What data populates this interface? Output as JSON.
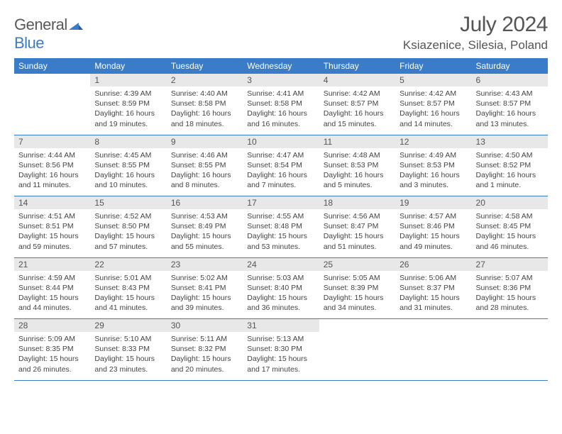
{
  "brand": {
    "part1": "General",
    "part2": "Blue"
  },
  "title": "July 2024",
  "location": "Ksiazenice, Silesia, Poland",
  "colors": {
    "header_bg": "#3a7cc7",
    "header_text": "#ffffff",
    "daynum_bg": "#e8e8e8",
    "text": "#444444",
    "rule": "#3a7cc7",
    "page_bg": "#ffffff",
    "title_color": "#555555"
  },
  "dayNames": [
    "Sunday",
    "Monday",
    "Tuesday",
    "Wednesday",
    "Thursday",
    "Friday",
    "Saturday"
  ],
  "weeks": [
    [
      null,
      {
        "d": "1",
        "sr": "4:39 AM",
        "ss": "8:59 PM",
        "dl": "16 hours and 19 minutes."
      },
      {
        "d": "2",
        "sr": "4:40 AM",
        "ss": "8:58 PM",
        "dl": "16 hours and 18 minutes."
      },
      {
        "d": "3",
        "sr": "4:41 AM",
        "ss": "8:58 PM",
        "dl": "16 hours and 16 minutes."
      },
      {
        "d": "4",
        "sr": "4:42 AM",
        "ss": "8:57 PM",
        "dl": "16 hours and 15 minutes."
      },
      {
        "d": "5",
        "sr": "4:42 AM",
        "ss": "8:57 PM",
        "dl": "16 hours and 14 minutes."
      },
      {
        "d": "6",
        "sr": "4:43 AM",
        "ss": "8:57 PM",
        "dl": "16 hours and 13 minutes."
      }
    ],
    [
      {
        "d": "7",
        "sr": "4:44 AM",
        "ss": "8:56 PM",
        "dl": "16 hours and 11 minutes."
      },
      {
        "d": "8",
        "sr": "4:45 AM",
        "ss": "8:55 PM",
        "dl": "16 hours and 10 minutes."
      },
      {
        "d": "9",
        "sr": "4:46 AM",
        "ss": "8:55 PM",
        "dl": "16 hours and 8 minutes."
      },
      {
        "d": "10",
        "sr": "4:47 AM",
        "ss": "8:54 PM",
        "dl": "16 hours and 7 minutes."
      },
      {
        "d": "11",
        "sr": "4:48 AM",
        "ss": "8:53 PM",
        "dl": "16 hours and 5 minutes."
      },
      {
        "d": "12",
        "sr": "4:49 AM",
        "ss": "8:53 PM",
        "dl": "16 hours and 3 minutes."
      },
      {
        "d": "13",
        "sr": "4:50 AM",
        "ss": "8:52 PM",
        "dl": "16 hours and 1 minute."
      }
    ],
    [
      {
        "d": "14",
        "sr": "4:51 AM",
        "ss": "8:51 PM",
        "dl": "15 hours and 59 minutes."
      },
      {
        "d": "15",
        "sr": "4:52 AM",
        "ss": "8:50 PM",
        "dl": "15 hours and 57 minutes."
      },
      {
        "d": "16",
        "sr": "4:53 AM",
        "ss": "8:49 PM",
        "dl": "15 hours and 55 minutes."
      },
      {
        "d": "17",
        "sr": "4:55 AM",
        "ss": "8:48 PM",
        "dl": "15 hours and 53 minutes."
      },
      {
        "d": "18",
        "sr": "4:56 AM",
        "ss": "8:47 PM",
        "dl": "15 hours and 51 minutes."
      },
      {
        "d": "19",
        "sr": "4:57 AM",
        "ss": "8:46 PM",
        "dl": "15 hours and 49 minutes."
      },
      {
        "d": "20",
        "sr": "4:58 AM",
        "ss": "8:45 PM",
        "dl": "15 hours and 46 minutes."
      }
    ],
    [
      {
        "d": "21",
        "sr": "4:59 AM",
        "ss": "8:44 PM",
        "dl": "15 hours and 44 minutes."
      },
      {
        "d": "22",
        "sr": "5:01 AM",
        "ss": "8:43 PM",
        "dl": "15 hours and 41 minutes."
      },
      {
        "d": "23",
        "sr": "5:02 AM",
        "ss": "8:41 PM",
        "dl": "15 hours and 39 minutes."
      },
      {
        "d": "24",
        "sr": "5:03 AM",
        "ss": "8:40 PM",
        "dl": "15 hours and 36 minutes."
      },
      {
        "d": "25",
        "sr": "5:05 AM",
        "ss": "8:39 PM",
        "dl": "15 hours and 34 minutes."
      },
      {
        "d": "26",
        "sr": "5:06 AM",
        "ss": "8:37 PM",
        "dl": "15 hours and 31 minutes."
      },
      {
        "d": "27",
        "sr": "5:07 AM",
        "ss": "8:36 PM",
        "dl": "15 hours and 28 minutes."
      }
    ],
    [
      {
        "d": "28",
        "sr": "5:09 AM",
        "ss": "8:35 PM",
        "dl": "15 hours and 26 minutes."
      },
      {
        "d": "29",
        "sr": "5:10 AM",
        "ss": "8:33 PM",
        "dl": "15 hours and 23 minutes."
      },
      {
        "d": "30",
        "sr": "5:11 AM",
        "ss": "8:32 PM",
        "dl": "15 hours and 20 minutes."
      },
      {
        "d": "31",
        "sr": "5:13 AM",
        "ss": "8:30 PM",
        "dl": "15 hours and 17 minutes."
      },
      null,
      null,
      null
    ]
  ],
  "labels": {
    "sunrise": "Sunrise:",
    "sunset": "Sunset:",
    "daylight": "Daylight:"
  }
}
